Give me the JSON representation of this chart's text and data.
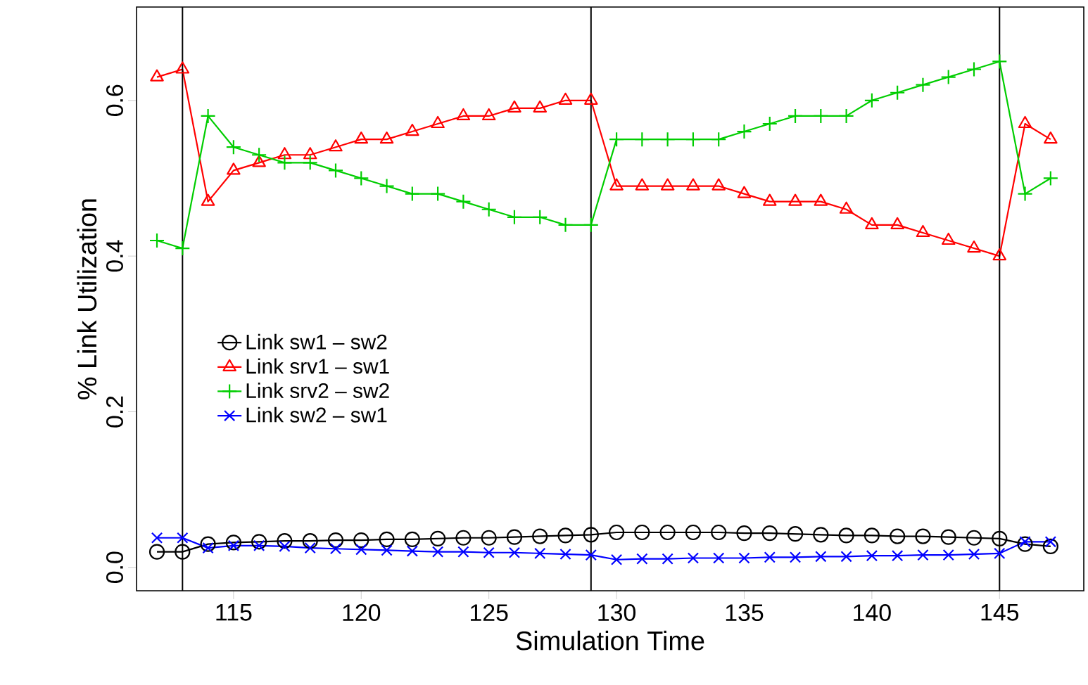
{
  "chart_data": {
    "type": "line",
    "xlabel": "Simulation Time",
    "ylabel": "% Link Utilization",
    "x": [
      112,
      113,
      114,
      115,
      116,
      117,
      118,
      119,
      120,
      121,
      122,
      123,
      124,
      125,
      126,
      127,
      128,
      129,
      130,
      131,
      132,
      133,
      134,
      135,
      136,
      137,
      138,
      139,
      140,
      141,
      142,
      143,
      144,
      145,
      146,
      147
    ],
    "series": [
      {
        "name": "Link  sw1 – sw2",
        "color": "#000000",
        "marker": "circle",
        "values": [
          0.02,
          0.02,
          0.03,
          0.032,
          0.033,
          0.034,
          0.034,
          0.035,
          0.035,
          0.036,
          0.036,
          0.037,
          0.038,
          0.038,
          0.039,
          0.04,
          0.041,
          0.042,
          0.045,
          0.045,
          0.045,
          0.045,
          0.045,
          0.044,
          0.044,
          0.043,
          0.042,
          0.041,
          0.041,
          0.04,
          0.04,
          0.039,
          0.038,
          0.037,
          0.03,
          0.027
        ]
      },
      {
        "name": "Link  srv1 – sw1",
        "color": "#ff0000",
        "marker": "triangle",
        "values": [
          0.63,
          0.64,
          0.47,
          0.51,
          0.52,
          0.53,
          0.53,
          0.54,
          0.55,
          0.55,
          0.56,
          0.57,
          0.58,
          0.58,
          0.59,
          0.59,
          0.6,
          0.6,
          0.49,
          0.49,
          0.49,
          0.49,
          0.49,
          0.48,
          0.47,
          0.47,
          0.47,
          0.46,
          0.44,
          0.44,
          0.43,
          0.42,
          0.41,
          0.4,
          0.57,
          0.55
        ]
      },
      {
        "name": "Link  srv2 – sw2",
        "color": "#00cd00",
        "marker": "plus",
        "values": [
          0.42,
          0.41,
          0.58,
          0.54,
          0.53,
          0.52,
          0.52,
          0.51,
          0.5,
          0.49,
          0.48,
          0.48,
          0.47,
          0.46,
          0.45,
          0.45,
          0.44,
          0.44,
          0.55,
          0.55,
          0.55,
          0.55,
          0.55,
          0.56,
          0.57,
          0.58,
          0.58,
          0.58,
          0.6,
          0.61,
          0.62,
          0.63,
          0.64,
          0.65,
          0.48,
          0.5
        ]
      },
      {
        "name": "Link  sw2 – sw1",
        "color": "#0000ff",
        "marker": "cross",
        "values": [
          0.038,
          0.038,
          0.025,
          0.028,
          0.028,
          0.027,
          0.025,
          0.024,
          0.023,
          0.022,
          0.021,
          0.02,
          0.02,
          0.019,
          0.019,
          0.018,
          0.017,
          0.016,
          0.01,
          0.011,
          0.011,
          0.012,
          0.012,
          0.012,
          0.013,
          0.013,
          0.014,
          0.014,
          0.015,
          0.015,
          0.016,
          0.016,
          0.017,
          0.018,
          0.033,
          0.033
        ]
      }
    ],
    "xlim": [
      111.2,
      148.3
    ],
    "ylim": [
      -0.03,
      0.72
    ],
    "xticks": [
      115,
      120,
      125,
      130,
      135,
      140,
      145
    ],
    "yticks": [
      {
        "value": 0,
        "label": "0.0"
      },
      {
        "value": 0.2,
        "label": "0.2"
      },
      {
        "value": 0.4,
        "label": "0.4"
      },
      {
        "value": 0.6,
        "label": "0.6"
      }
    ],
    "ref_lines": [
      {
        "axis": "x",
        "value": 113,
        "color": "#000000"
      },
      {
        "axis": "x",
        "value": 129,
        "color": "#000000"
      },
      {
        "axis": "x",
        "value": 145,
        "color": "#000000"
      }
    ],
    "legend": "left",
    "grid": false
  }
}
